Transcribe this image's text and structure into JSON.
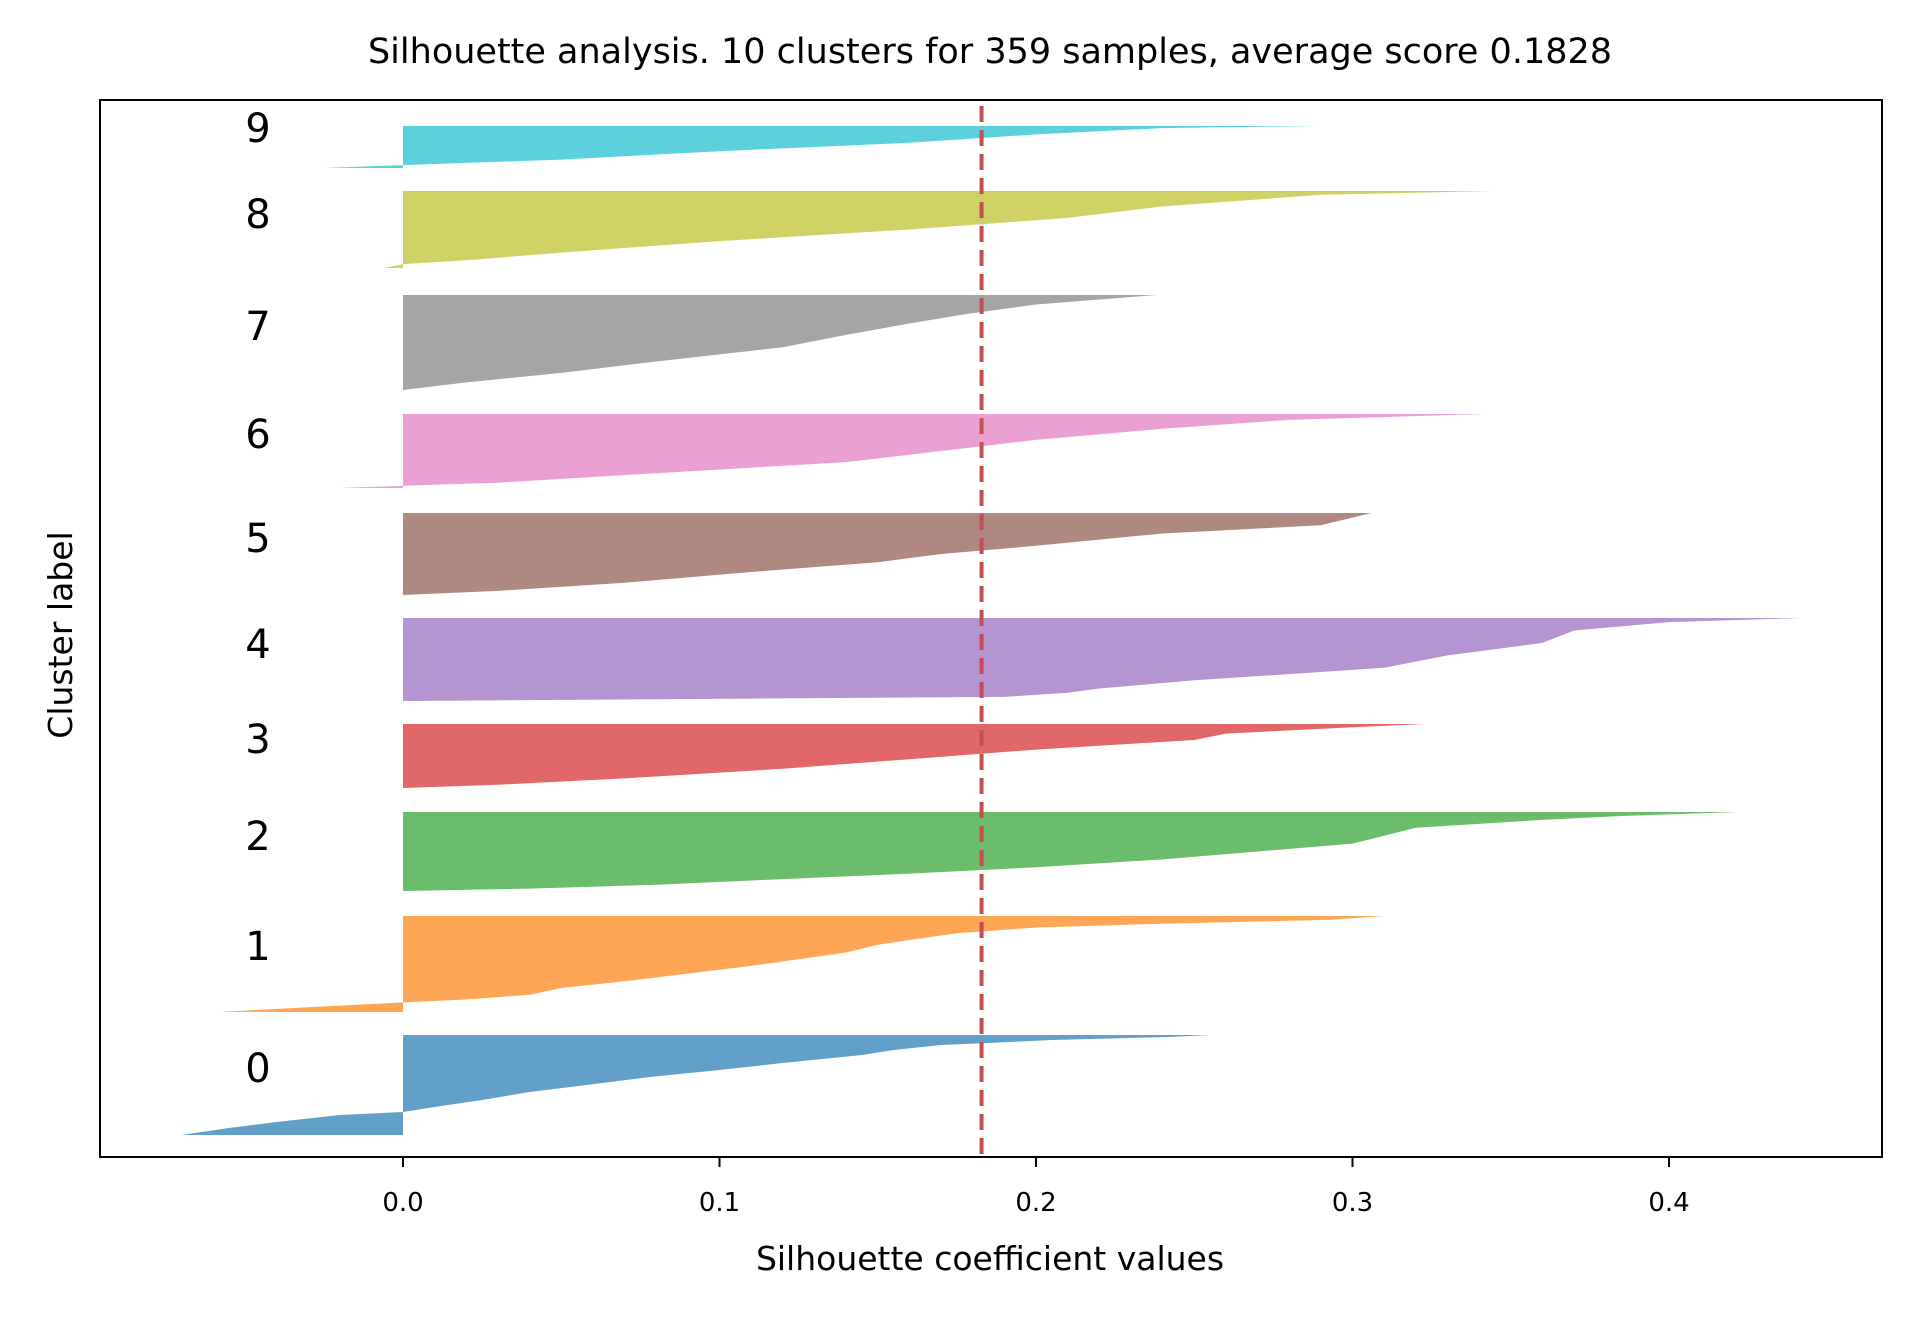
{
  "chart_data": {
    "type": "area",
    "title": "Silhouette analysis. 10 clusters for 359 samples, average score 0.1828",
    "xlabel": "Silhouette coefficient values",
    "ylabel": "Cluster label",
    "xlim": [
      -0.072,
      0.47
    ],
    "x_ticks": [
      0.0,
      0.1,
      0.2,
      0.3,
      0.4
    ],
    "x_tick_labels": [
      "0.0",
      "0.1",
      "0.2",
      "0.3",
      "0.4"
    ],
    "average_score": 0.1828,
    "average_line_color": "#c44e52",
    "grid": false,
    "clusters": [
      {
        "label": "0",
        "color": "#1f77b4",
        "min": -0.07,
        "max": 0.255,
        "profile": [
          [
            0,
            0.255
          ],
          [
            0.02,
            0.242
          ],
          [
            0.05,
            0.205
          ],
          [
            0.08,
            0.185
          ],
          [
            0.1,
            0.17
          ],
          [
            0.15,
            0.155
          ],
          [
            0.2,
            0.145
          ],
          [
            0.28,
            0.12
          ],
          [
            0.35,
            0.1
          ],
          [
            0.42,
            0.078
          ],
          [
            0.5,
            0.058
          ],
          [
            0.57,
            0.04
          ],
          [
            0.65,
            0.025
          ],
          [
            0.72,
            0.01
          ],
          [
            0.77,
            0.0
          ],
          [
            0.8,
            -0.02
          ],
          [
            0.87,
            -0.04
          ],
          [
            0.93,
            -0.055
          ],
          [
            1,
            -0.07
          ]
        ]
      },
      {
        "label": "1",
        "color": "#ff7f0e",
        "min": -0.058,
        "max": 0.31,
        "profile": [
          [
            0,
            0.31
          ],
          [
            0.04,
            0.293
          ],
          [
            0.08,
            0.24
          ],
          [
            0.12,
            0.2
          ],
          [
            0.18,
            0.175
          ],
          [
            0.25,
            0.16
          ],
          [
            0.3,
            0.15
          ],
          [
            0.38,
            0.14
          ],
          [
            0.45,
            0.125
          ],
          [
            0.52,
            0.11
          ],
          [
            0.6,
            0.09
          ],
          [
            0.68,
            0.07
          ],
          [
            0.75,
            0.05
          ],
          [
            0.82,
            0.04
          ],
          [
            0.87,
            0.02
          ],
          [
            0.9,
            0.0
          ],
          [
            0.95,
            -0.03
          ],
          [
            1,
            -0.058
          ]
        ]
      },
      {
        "label": "2",
        "color": "#2ca02c",
        "min": 0.0,
        "max": 0.422,
        "profile": [
          [
            0,
            0.422
          ],
          [
            0.05,
            0.385
          ],
          [
            0.1,
            0.36
          ],
          [
            0.2,
            0.32
          ],
          [
            0.3,
            0.31
          ],
          [
            0.4,
            0.3
          ],
          [
            0.5,
            0.27
          ],
          [
            0.6,
            0.24
          ],
          [
            0.7,
            0.2
          ],
          [
            0.78,
            0.16
          ],
          [
            0.85,
            0.12
          ],
          [
            0.92,
            0.08
          ],
          [
            0.97,
            0.04
          ],
          [
            1,
            0.0
          ]
        ]
      },
      {
        "label": "3",
        "color": "#d62728",
        "min": 0.0,
        "max": 0.323,
        "profile": [
          [
            0,
            0.323
          ],
          [
            0.05,
            0.3
          ],
          [
            0.15,
            0.26
          ],
          [
            0.25,
            0.25
          ],
          [
            0.4,
            0.2
          ],
          [
            0.55,
            0.16
          ],
          [
            0.7,
            0.12
          ],
          [
            0.85,
            0.07
          ],
          [
            0.95,
            0.03
          ],
          [
            1,
            0.0
          ]
        ]
      },
      {
        "label": "4",
        "color": "#9467bd",
        "min": 0.0,
        "max": 0.442,
        "profile": [
          [
            0,
            0.442
          ],
          [
            0.05,
            0.4
          ],
          [
            0.15,
            0.37
          ],
          [
            0.3,
            0.36
          ],
          [
            0.45,
            0.33
          ],
          [
            0.6,
            0.31
          ],
          [
            0.75,
            0.25
          ],
          [
            0.85,
            0.22
          ],
          [
            0.9,
            0.21
          ],
          [
            0.95,
            0.19
          ],
          [
            1,
            0.0
          ]
        ]
      },
      {
        "label": "5",
        "color": "#8c564b",
        "min": 0.0,
        "max": 0.306,
        "profile": [
          [
            0,
            0.306
          ],
          [
            0.15,
            0.29
          ],
          [
            0.25,
            0.24
          ],
          [
            0.4,
            0.2
          ],
          [
            0.5,
            0.17
          ],
          [
            0.6,
            0.15
          ],
          [
            0.72,
            0.11
          ],
          [
            0.85,
            0.07
          ],
          [
            0.95,
            0.03
          ],
          [
            1,
            0.0
          ]
        ]
      },
      {
        "label": "6",
        "color": "#e377c2",
        "min": -0.02,
        "max": 0.342,
        "profile": [
          [
            0,
            0.342
          ],
          [
            0.08,
            0.28
          ],
          [
            0.2,
            0.24
          ],
          [
            0.35,
            0.2
          ],
          [
            0.5,
            0.17
          ],
          [
            0.65,
            0.14
          ],
          [
            0.8,
            0.08
          ],
          [
            0.93,
            0.03
          ],
          [
            0.97,
            0.0
          ],
          [
            1,
            -0.02
          ]
        ]
      },
      {
        "label": "7",
        "color": "#7f7f7f",
        "min": 0.0,
        "max": 0.238,
        "profile": [
          [
            0,
            0.238
          ],
          [
            0.1,
            0.2
          ],
          [
            0.2,
            0.178
          ],
          [
            0.3,
            0.16
          ],
          [
            0.42,
            0.14
          ],
          [
            0.55,
            0.12
          ],
          [
            0.7,
            0.08
          ],
          [
            0.82,
            0.05
          ],
          [
            0.92,
            0.02
          ],
          [
            1,
            0.0
          ]
        ]
      },
      {
        "label": "8",
        "color": "#bcbd22",
        "min": -0.006,
        "max": 0.345,
        "profile": [
          [
            0,
            0.345
          ],
          [
            0.05,
            0.29
          ],
          [
            0.2,
            0.24
          ],
          [
            0.35,
            0.21
          ],
          [
            0.5,
            0.16
          ],
          [
            0.65,
            0.1
          ],
          [
            0.8,
            0.05
          ],
          [
            0.9,
            0.02
          ],
          [
            0.95,
            0.0
          ],
          [
            1,
            -0.006
          ]
        ]
      },
      {
        "label": "9",
        "color": "#17becf",
        "min": -0.025,
        "max": 0.29,
        "profile": [
          [
            0,
            0.29
          ],
          [
            0.05,
            0.24
          ],
          [
            0.2,
            0.2
          ],
          [
            0.4,
            0.16
          ],
          [
            0.6,
            0.1
          ],
          [
            0.8,
            0.05
          ],
          [
            0.93,
            0.0
          ],
          [
            1,
            -0.025
          ]
        ]
      }
    ]
  }
}
